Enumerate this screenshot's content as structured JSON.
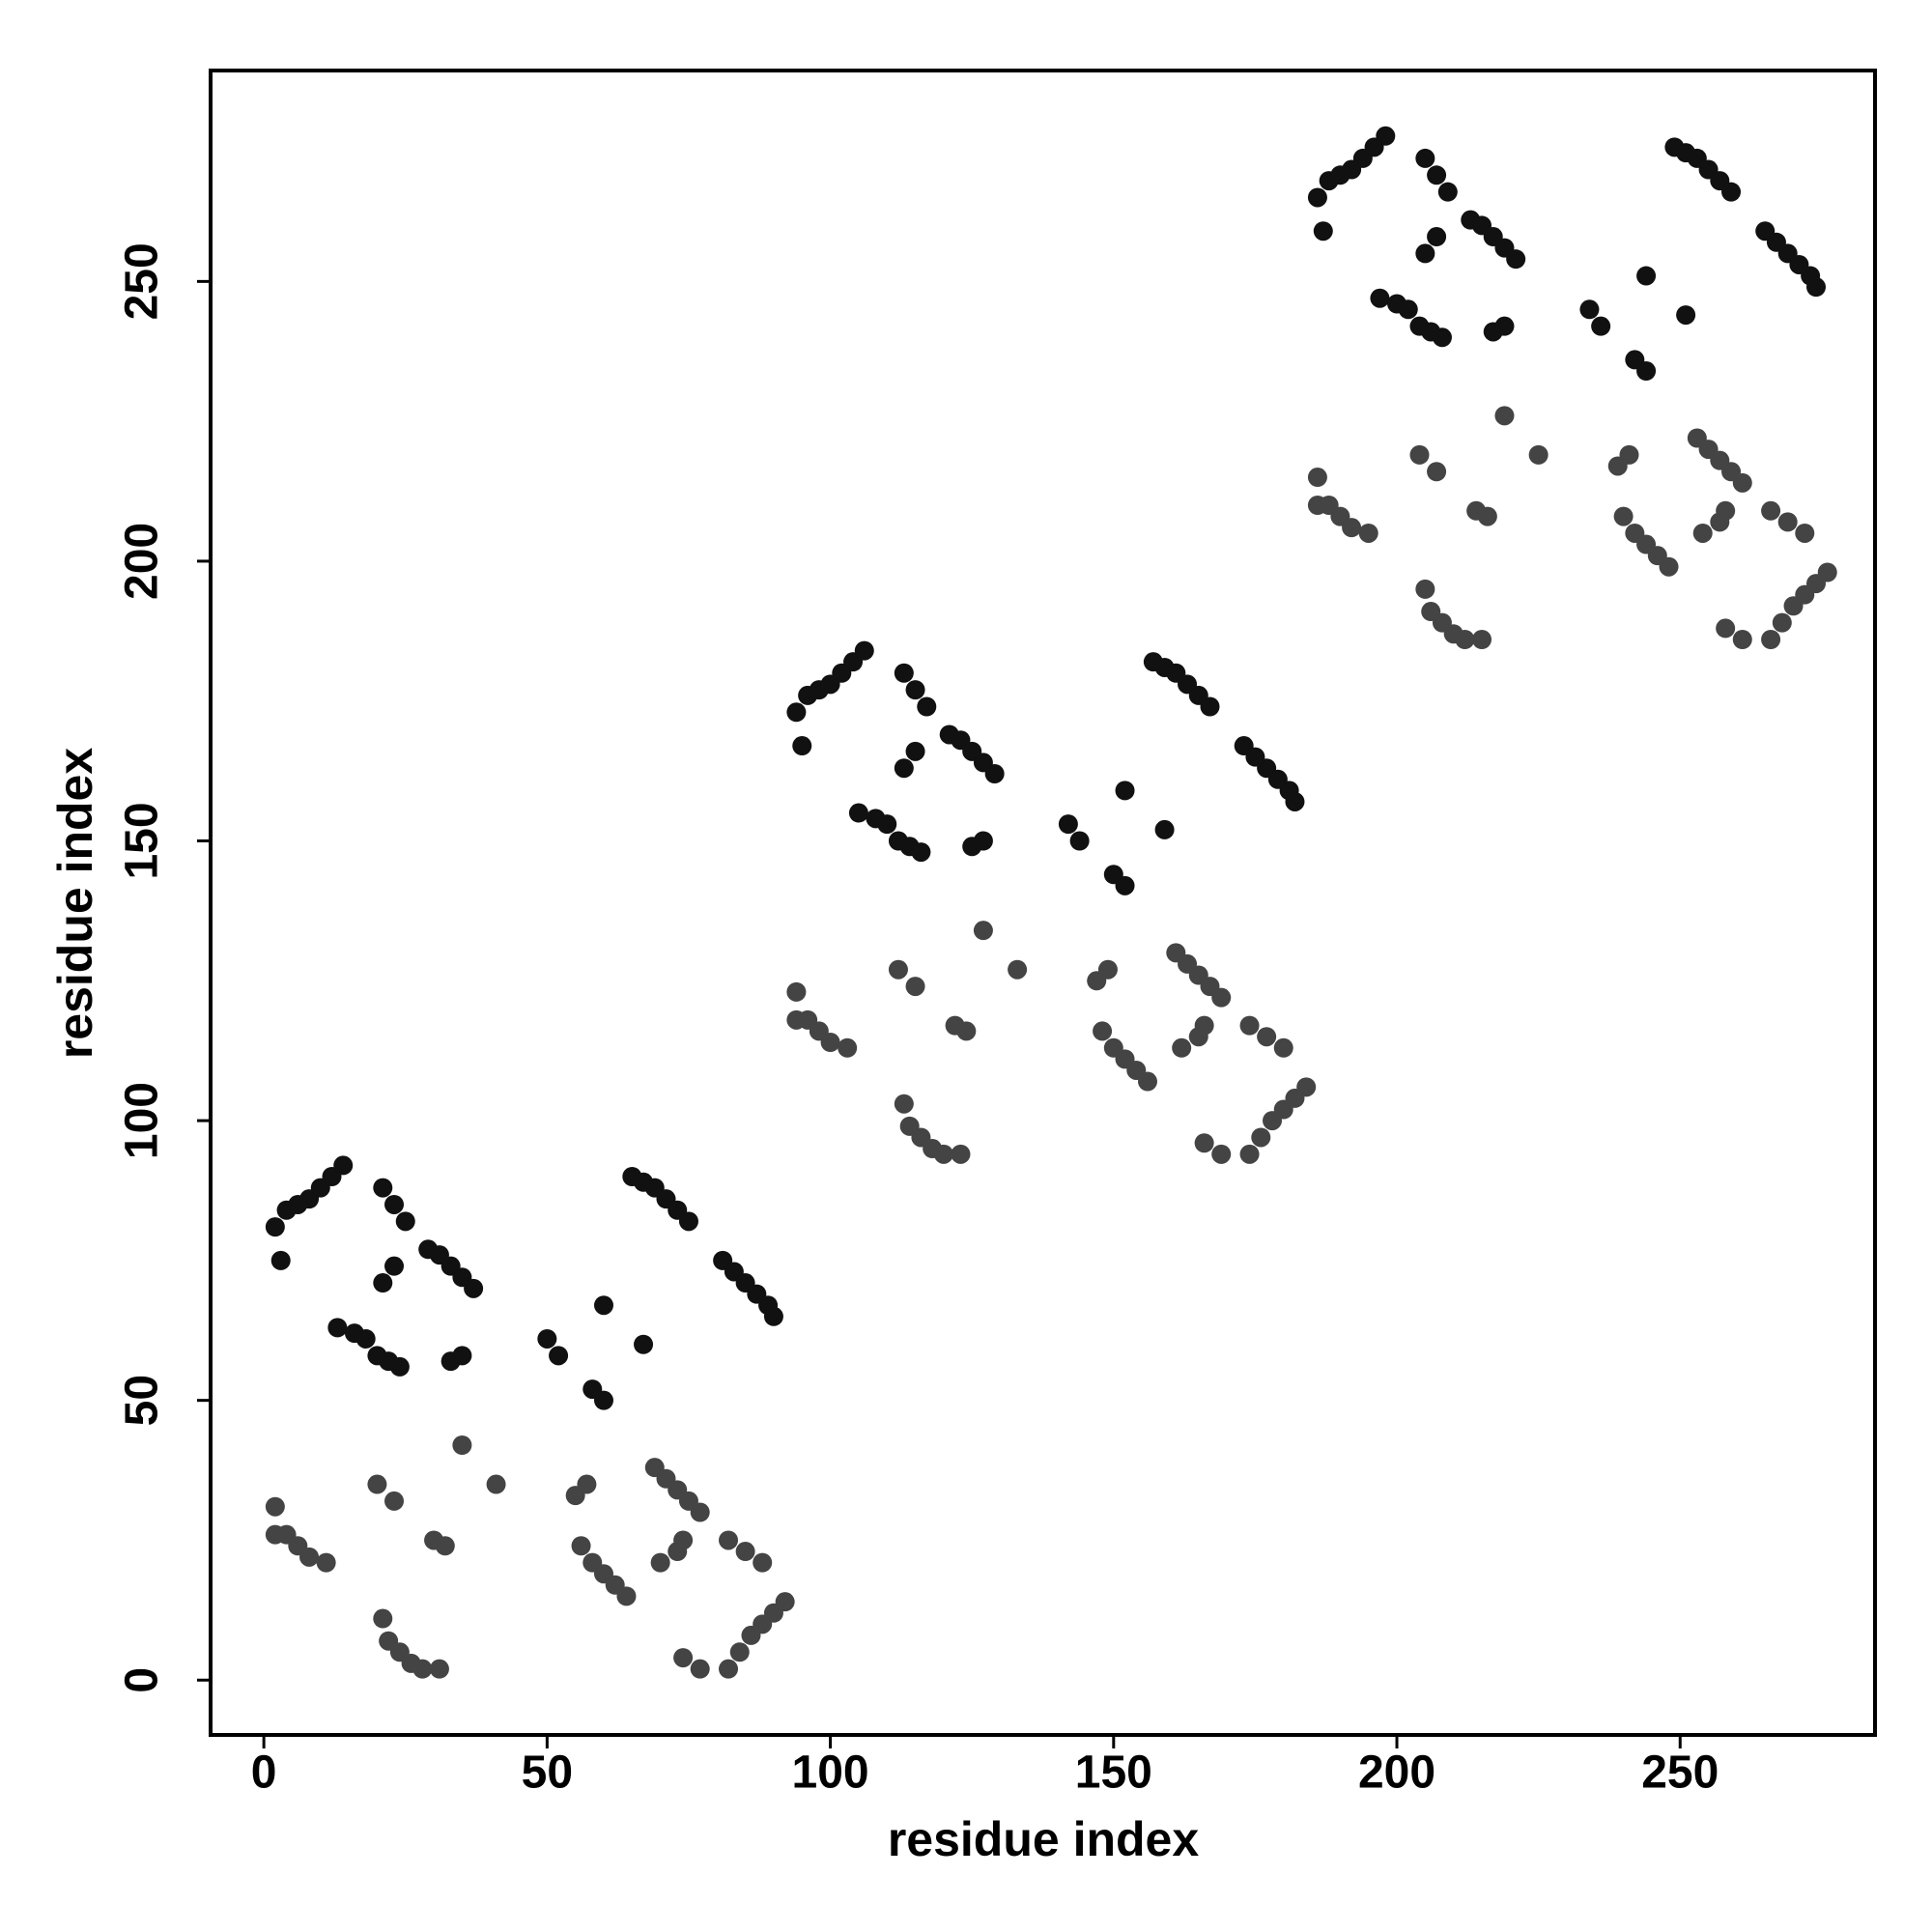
{
  "chart_data": {
    "type": "scatter",
    "xlabel": "residue index",
    "ylabel": "residue index",
    "xlim": [
      -9.4,
      284.4
    ],
    "ylim": [
      -9.8,
      287.7
    ],
    "xticks": [
      0,
      50,
      100,
      150,
      200,
      250
    ],
    "yticks": [
      0,
      50,
      100,
      150,
      200,
      250
    ],
    "series": [
      {
        "color": "#111111",
        "x": [
          2,
          4,
          6,
          8,
          10,
          12,
          14,
          3,
          21,
          23,
          25,
          21,
          23,
          29,
          31,
          33,
          35,
          37,
          13,
          16,
          18,
          20,
          22,
          24,
          50,
          52,
          60,
          67,
          58,
          60,
          65,
          67,
          69,
          71,
          73,
          75,
          81,
          83,
          85,
          87,
          89,
          90,
          33,
          35,
          94,
          96,
          98,
          100,
          102,
          104,
          106,
          95,
          113,
          115,
          117,
          113,
          115,
          121,
          123,
          125,
          127,
          129,
          105,
          108,
          110,
          112,
          114,
          116,
          142,
          144,
          152,
          159,
          150,
          152,
          157,
          159,
          161,
          163,
          165,
          167,
          173,
          175,
          177,
          179,
          181,
          182,
          125,
          127,
          186,
          188,
          190,
          192,
          194,
          196,
          198,
          187,
          205,
          207,
          209,
          205,
          207,
          213,
          215,
          217,
          219,
          221,
          197,
          200,
          202,
          204,
          206,
          208,
          234,
          236,
          244,
          251,
          242,
          244,
          249,
          251,
          253,
          255,
          257,
          259,
          265,
          267,
          269,
          271,
          273,
          274,
          217,
          219
        ],
        "values": [
          81,
          84,
          85,
          86,
          88,
          90,
          92,
          75,
          88,
          85,
          82,
          71,
          74,
          77,
          76,
          74,
          72,
          70,
          63,
          62,
          61,
          58,
          57,
          56,
          61,
          58,
          67,
          60,
          52,
          50,
          90,
          89,
          88,
          86,
          84,
          82,
          75,
          73,
          71,
          69,
          67,
          65,
          57,
          58,
          173,
          176,
          177,
          178,
          180,
          182,
          184,
          167,
          180,
          177,
          174,
          163,
          166,
          169,
          168,
          166,
          164,
          162,
          155,
          154,
          153,
          150,
          149,
          148,
          153,
          150,
          159,
          152,
          144,
          142,
          182,
          181,
          180,
          178,
          176,
          174,
          167,
          165,
          163,
          161,
          159,
          157,
          149,
          150,
          265,
          268,
          269,
          270,
          272,
          274,
          276,
          259,
          272,
          269,
          266,
          255,
          258,
          261,
          260,
          258,
          256,
          254,
          247,
          246,
          245,
          242,
          241,
          240,
          245,
          242,
          251,
          244,
          236,
          234,
          274,
          273,
          272,
          270,
          268,
          266,
          259,
          257,
          255,
          253,
          251,
          249,
          241,
          242
        ]
      },
      {
        "color": "#444444",
        "x": [
          35,
          41,
          20,
          23,
          30,
          32,
          55,
          57,
          56,
          58,
          60,
          62,
          64,
          69,
          71,
          73,
          75,
          77,
          70,
          73,
          74,
          2,
          2,
          4,
          6,
          8,
          11,
          21,
          22,
          24,
          26,
          28,
          31,
          74,
          77,
          82,
          84,
          86,
          88,
          90,
          92,
          82,
          85,
          88,
          127,
          133,
          112,
          115,
          122,
          124,
          147,
          149,
          148,
          150,
          152,
          154,
          156,
          161,
          163,
          165,
          167,
          169,
          162,
          165,
          166,
          94,
          94,
          96,
          98,
          100,
          103,
          113,
          114,
          116,
          118,
          120,
          123,
          166,
          169,
          174,
          176,
          178,
          180,
          182,
          184,
          174,
          177,
          180,
          219,
          225,
          204,
          207,
          214,
          216,
          239,
          241,
          240,
          242,
          244,
          246,
          248,
          253,
          255,
          257,
          259,
          261,
          254,
          257,
          258,
          186,
          186,
          188,
          190,
          192,
          195,
          205,
          206,
          208,
          210,
          212,
          215,
          258,
          261,
          266,
          268,
          270,
          272,
          274,
          276,
          266,
          269,
          272
        ],
        "values": [
          42,
          35,
          35,
          32,
          25,
          24,
          33,
          35,
          24,
          21,
          19,
          17,
          15,
          38,
          36,
          34,
          32,
          30,
          21,
          23,
          25,
          31,
          26,
          26,
          24,
          22,
          21,
          11,
          7,
          5,
          3,
          2,
          2,
          4,
          2,
          2,
          5,
          8,
          10,
          12,
          14,
          25,
          23,
          21,
          134,
          127,
          127,
          124,
          117,
          116,
          125,
          127,
          116,
          113,
          111,
          109,
          107,
          130,
          128,
          126,
          124,
          122,
          113,
          115,
          117,
          123,
          118,
          118,
          116,
          114,
          113,
          103,
          99,
          97,
          95,
          94,
          94,
          96,
          94,
          94,
          97,
          100,
          102,
          104,
          106,
          117,
          115,
          113,
          226,
          219,
          219,
          216,
          209,
          208,
          217,
          219,
          208,
          205,
          203,
          201,
          199,
          222,
          220,
          218,
          216,
          214,
          205,
          207,
          209,
          215,
          210,
          210,
          208,
          206,
          205,
          195,
          191,
          189,
          187,
          186,
          186,
          188,
          186,
          186,
          189,
          192,
          194,
          196,
          198,
          209,
          207,
          205
        ]
      }
    ]
  }
}
